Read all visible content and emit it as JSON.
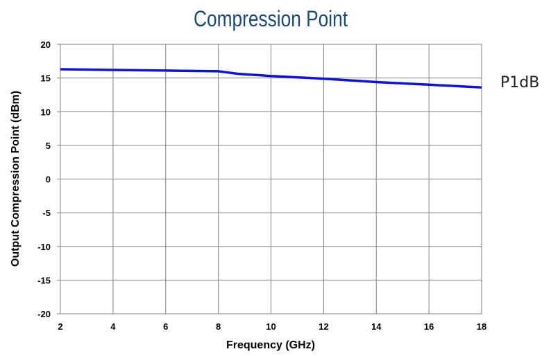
{
  "chart_data": {
    "type": "line",
    "title": "Compression Point",
    "xlabel": "Frequency (GHz)",
    "ylabel": "Output Compression Point (dBm)",
    "xlim": [
      2,
      18
    ],
    "ylim": [
      -20,
      20
    ],
    "x_ticks": [
      2,
      4,
      6,
      8,
      10,
      12,
      14,
      16,
      18
    ],
    "y_ticks": [
      20,
      15,
      10,
      5,
      0,
      -5,
      -10,
      -15,
      -20
    ],
    "grid": true,
    "legend_placement": "right",
    "series": [
      {
        "name": "P1dB",
        "color": "#1010e0",
        "x": [
          2,
          4,
          6,
          8,
          8.8,
          10,
          12,
          14,
          16,
          18
        ],
        "y": [
          16.3,
          16.2,
          16.1,
          16.0,
          15.6,
          15.3,
          14.9,
          14.4,
          14.0,
          13.6
        ]
      }
    ]
  },
  "colors": {
    "title": "#1b4a7a",
    "series_line": "#1010e0",
    "grid": "#808080",
    "frame": "#808080"
  }
}
